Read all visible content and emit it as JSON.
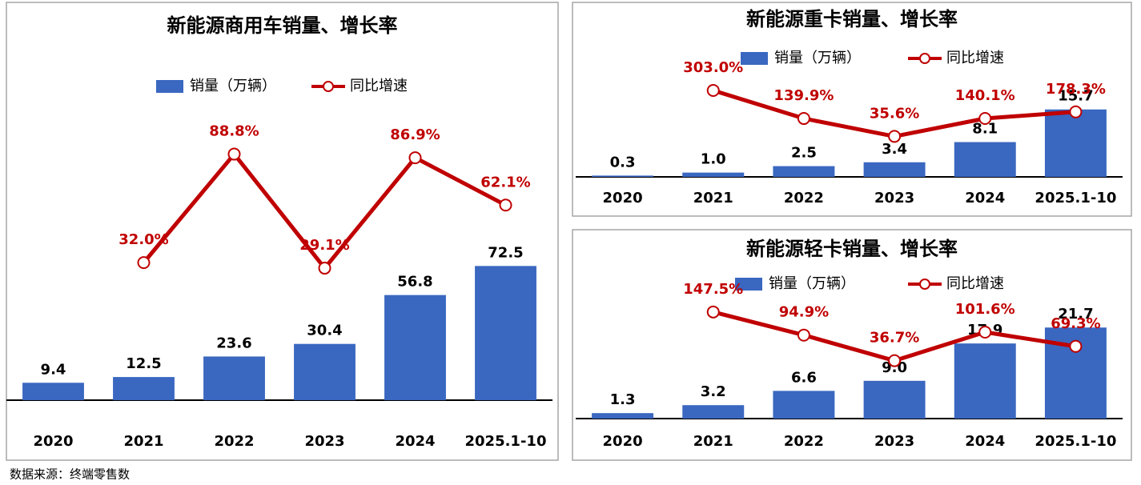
{
  "chart_data": [
    {
      "type": "bar",
      "title": "新能源商用车销量、增长率",
      "categories": [
        "2020",
        "2021",
        "2022",
        "2023",
        "2024",
        "2025.1-10"
      ],
      "series": [
        {
          "name": "销量（万辆）",
          "color": "#3a67c0",
          "values": [
            9.4,
            12.5,
            23.6,
            30.4,
            56.8,
            72.5
          ],
          "value_labels": [
            "9.4",
            "12.5",
            "23.6",
            "30.4",
            "56.8",
            "72.5"
          ]
        },
        {
          "name": "同比增速",
          "color": "#c00000",
          "type": "line",
          "axis": "y2",
          "values": [
            null,
            32.0,
            88.8,
            29.1,
            86.9,
            62.1
          ],
          "value_labels": [
            null,
            "32.0%",
            "88.8%",
            "29.1%",
            "86.9%",
            "62.1%"
          ]
        }
      ],
      "ylim": [
        0,
        160
      ],
      "y2lim": [
        -40,
        115
      ]
    },
    {
      "type": "bar",
      "title": "新能源重卡销量、增长率",
      "categories": [
        "2020",
        "2021",
        "2022",
        "2023",
        "2024",
        "2025.1-10"
      ],
      "series": [
        {
          "name": "销量（万辆）",
          "color": "#3a67c0",
          "values": [
            0.3,
            1.0,
            2.5,
            3.4,
            8.1,
            15.7
          ],
          "value_labels": [
            "0.3",
            "1.0",
            "2.5",
            "3.4",
            "8.1",
            "15.7"
          ]
        },
        {
          "name": "同比增速",
          "color": "#c00000",
          "type": "line",
          "axis": "y2",
          "values": [
            null,
            303.0,
            139.9,
            35.6,
            140.1,
            178.3
          ],
          "value_labels": [
            null,
            "303.0%",
            "139.9%",
            "35.6%",
            "140.1%",
            "178.3%"
          ]
        }
      ],
      "ylim": [
        0,
        30
      ],
      "y2lim": [
        -200,
        550
      ]
    },
    {
      "type": "bar",
      "title": "新能源轻卡销量、增长率",
      "categories": [
        "2020",
        "2021",
        "2022",
        "2023",
        "2024",
        "2025.1-10"
      ],
      "series": [
        {
          "name": "销量（万辆）",
          "color": "#3a67c0",
          "values": [
            1.3,
            3.2,
            6.6,
            9.0,
            17.9,
            21.7
          ],
          "value_labels": [
            "1.3",
            "3.2",
            "6.6",
            "9.0",
            "17.9",
            "21.7"
          ]
        },
        {
          "name": "同比增速",
          "color": "#c00000",
          "type": "line",
          "axis": "y2",
          "values": [
            null,
            147.5,
            94.9,
            36.7,
            101.6,
            69.3
          ],
          "value_labels": [
            null,
            "147.5%",
            "94.9%",
            "36.7%",
            "101.6%",
            "69.3%"
          ]
        }
      ],
      "ylim": [
        0,
        33
      ],
      "y2lim": [
        -95,
        220
      ]
    }
  ],
  "source": "数据来源：终端零售数"
}
